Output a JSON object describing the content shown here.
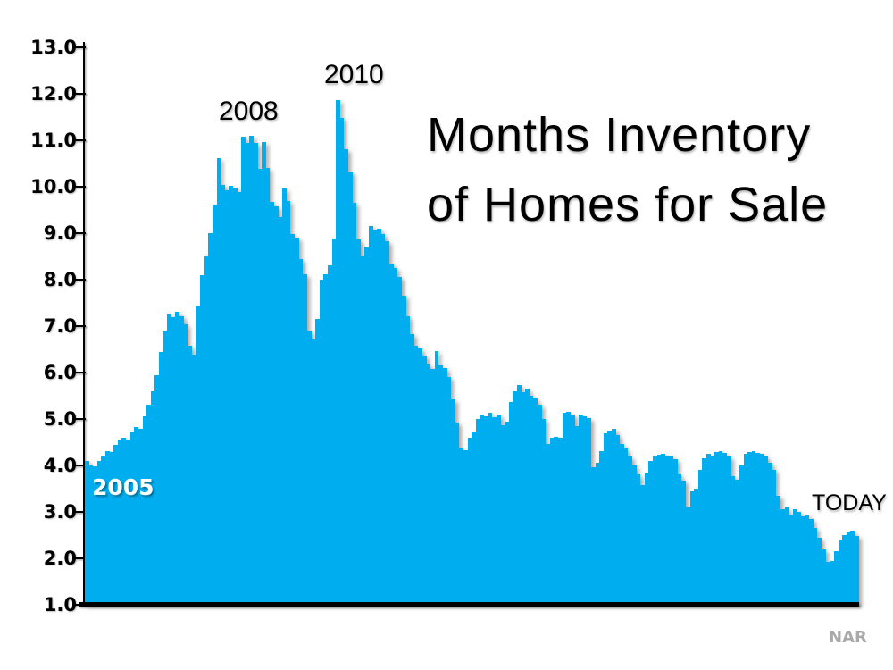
{
  "page": {
    "background_color": "#ffffff"
  },
  "labels": {
    "label_2005": "2005",
    "label_2008": "2008",
    "label_2010": "2010",
    "label_today": "TODAY",
    "label_source": "NAR"
  },
  "chart_data": {
    "type": "area",
    "title": "Months Inventory of Homes for Sale",
    "title_lines": {
      "line1": "Months Inventory",
      "line2": "of Homes for Sale"
    },
    "xlabel": "",
    "ylabel": "",
    "legend": false,
    "gridlines": false,
    "series_name": "Months inventory of homes for sale",
    "series_color": "#00AEEF",
    "axis_color": "#000000",
    "source": "NAR",
    "x_axis": {
      "start_label": "2005",
      "end_label": "TODAY",
      "frequency": "monthly"
    },
    "y_axis": {
      "min": 1.0,
      "max": 13.0,
      "tick_step": 1.0,
      "tick_labels_top_to_bottom": [
        "13.0",
        "12.0",
        "11.0",
        "10.0",
        "9.0",
        "8.0",
        "7.0",
        "6.0",
        "5.0",
        "4.0",
        "3.0",
        "2.0",
        "1.0"
      ]
    },
    "annotations": [
      {
        "text": "2005",
        "placement": "inside-area-lower-left",
        "color": "#ffffff"
      },
      {
        "text": "2008",
        "placement": "above-first-peak-cluster-approx-11.1",
        "color": "#000000"
      },
      {
        "text": "2010",
        "placement": "above-tallest-spike-approx-11.9",
        "color": "#000000"
      },
      {
        "text": "TODAY",
        "placement": "above-final-bars-right-end",
        "color": "#000000"
      },
      {
        "text": "NAR",
        "placement": "bottom-right-source",
        "color": "#a9a9a9"
      }
    ],
    "values": [
      4.1,
      4.0,
      3.98,
      4.1,
      4.2,
      4.3,
      4.28,
      4.45,
      4.55,
      4.6,
      4.56,
      4.72,
      4.82,
      4.78,
      5.05,
      5.3,
      5.6,
      5.95,
      6.45,
      6.9,
      7.26,
      7.19,
      7.3,
      7.22,
      7.03,
      6.58,
      6.38,
      7.45,
      8.1,
      8.5,
      9.0,
      9.62,
      10.62,
      10.04,
      9.92,
      10.02,
      9.98,
      9.88,
      11.08,
      10.94,
      11.1,
      10.94,
      10.38,
      10.97,
      10.4,
      9.67,
      9.58,
      9.35,
      9.97,
      9.69,
      8.98,
      8.9,
      8.44,
      8.12,
      6.9,
      6.72,
      7.16,
      8.0,
      8.12,
      8.3,
      8.88,
      11.87,
      11.48,
      10.8,
      10.33,
      9.66,
      8.87,
      8.5,
      8.7,
      9.15,
      9.05,
      9.1,
      8.98,
      8.83,
      8.35,
      8.25,
      8.05,
      7.65,
      7.22,
      6.83,
      6.58,
      6.52,
      6.36,
      6.17,
      6.07,
      6.46,
      6.15,
      6.1,
      5.9,
      5.42,
      4.92,
      4.36,
      4.33,
      4.6,
      4.72,
      5.0,
      5.1,
      5.05,
      5.13,
      5.03,
      5.1,
      4.87,
      4.95,
      5.37,
      5.6,
      5.73,
      5.58,
      5.65,
      5.5,
      5.45,
      5.3,
      5.0,
      4.47,
      4.6,
      4.62,
      4.6,
      5.14,
      5.15,
      5.1,
      4.85,
      5.08,
      5.05,
      5.02,
      3.96,
      4.05,
      4.3,
      4.7,
      4.75,
      4.78,
      4.66,
      4.47,
      4.37,
      4.2,
      4.0,
      3.8,
      3.58,
      3.83,
      4.1,
      4.2,
      4.23,
      4.25,
      4.2,
      4.22,
      4.13,
      3.8,
      3.67,
      3.09,
      3.44,
      3.5,
      3.9,
      4.15,
      4.25,
      4.2,
      4.28,
      4.3,
      4.27,
      4.2,
      3.77,
      3.7,
      4.0,
      4.25,
      4.28,
      4.3,
      4.27,
      4.25,
      4.2,
      4.05,
      3.9,
      3.35,
      3.05,
      3.1,
      2.95,
      3.05,
      3.0,
      2.9,
      2.95,
      2.85,
      2.65,
      2.45,
      2.2,
      1.92,
      1.95,
      2.15,
      2.4,
      2.5,
      2.58,
      2.6,
      2.48
    ]
  }
}
